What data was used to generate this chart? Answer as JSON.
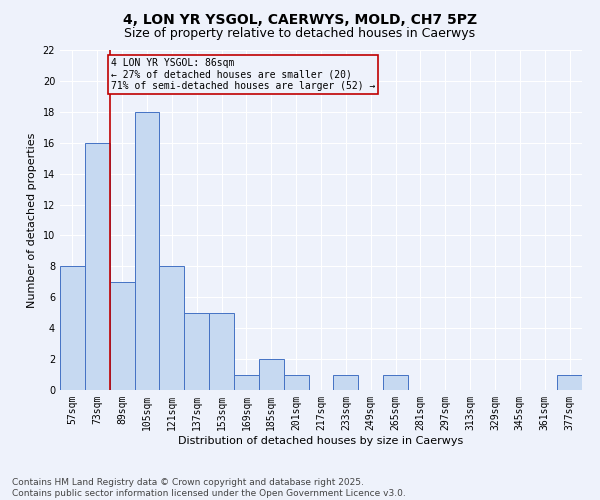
{
  "title1": "4, LON YR YSGOL, CAERWYS, MOLD, CH7 5PZ",
  "title2": "Size of property relative to detached houses in Caerwys",
  "xlabel": "Distribution of detached houses by size in Caerwys",
  "ylabel": "Number of detached properties",
  "categories": [
    "57sqm",
    "73sqm",
    "89sqm",
    "105sqm",
    "121sqm",
    "137sqm",
    "153sqm",
    "169sqm",
    "185sqm",
    "201sqm",
    "217sqm",
    "233sqm",
    "249sqm",
    "265sqm",
    "281sqm",
    "297sqm",
    "313sqm",
    "329sqm",
    "345sqm",
    "361sqm",
    "377sqm"
  ],
  "values": [
    8,
    16,
    7,
    18,
    8,
    5,
    5,
    1,
    2,
    1,
    0,
    1,
    0,
    1,
    0,
    0,
    0,
    0,
    0,
    0,
    1
  ],
  "bar_color": "#c6d9f1",
  "bar_edge_color": "#4472c4",
  "ylim": [
    0,
    22
  ],
  "yticks": [
    0,
    2,
    4,
    6,
    8,
    10,
    12,
    14,
    16,
    18,
    20,
    22
  ],
  "red_line_x": 1.5,
  "annotation_box_text": "4 LON YR YSGOL: 86sqm\n← 27% of detached houses are smaller (20)\n71% of semi-detached houses are larger (52) →",
  "annotation_box_color": "#c00000",
  "footer_text": "Contains HM Land Registry data © Crown copyright and database right 2025.\nContains public sector information licensed under the Open Government Licence v3.0.",
  "background_color": "#eef2fb",
  "grid_color": "#ffffff",
  "title_fontsize": 10,
  "subtitle_fontsize": 9,
  "axis_label_fontsize": 8,
  "tick_fontsize": 7,
  "annotation_fontsize": 7,
  "footer_fontsize": 6.5
}
